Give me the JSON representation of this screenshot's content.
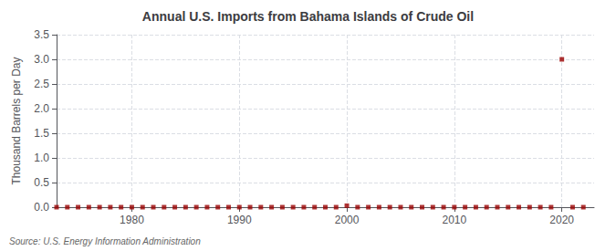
{
  "chart_data": {
    "type": "scatter",
    "title": "Annual U.S. Imports from Bahama Islands of Crude Oil",
    "ylabel": "Thousand Barrels per Day",
    "annotation": "Source: U.S. Energy Information Administration",
    "x": [
      1973,
      1974,
      1975,
      1976,
      1977,
      1978,
      1979,
      1980,
      1981,
      1982,
      1983,
      1984,
      1985,
      1986,
      1987,
      1988,
      1989,
      1990,
      1991,
      1992,
      1993,
      1994,
      1995,
      1996,
      1997,
      1998,
      1999,
      2000,
      2001,
      2002,
      2003,
      2004,
      2005,
      2006,
      2007,
      2008,
      2009,
      2010,
      2011,
      2012,
      2013,
      2014,
      2015,
      2016,
      2017,
      2018,
      2019,
      2020,
      2021,
      2022
    ],
    "values": [
      0,
      0,
      0,
      0,
      0,
      0,
      0,
      0,
      0,
      0,
      0,
      0,
      0,
      0,
      0,
      0,
      0,
      0,
      0,
      0,
      0,
      0,
      0,
      0,
      0,
      0,
      0,
      0.03,
      0,
      0,
      0,
      0,
      0,
      0,
      0,
      0,
      0,
      0,
      0,
      0,
      0,
      0,
      0,
      0,
      0,
      0,
      0,
      3.0,
      0,
      0
    ],
    "color": "#990000",
    "marker": "square",
    "xlim": [
      1973,
      2023
    ],
    "xticks": [
      1980,
      1990,
      2000,
      2010,
      2020
    ],
    "ylim": [
      0,
      3.5
    ],
    "yticks": [
      {
        "value": 0.0,
        "label": "0.0"
      },
      0.5,
      {
        "value": 1.0,
        "label": "1.0"
      },
      1.5,
      {
        "value": 2.0,
        "label": "2.0"
      },
      2.5,
      {
        "value": 3.0,
        "label": "3.0"
      },
      3.5
    ],
    "grid": true
  }
}
